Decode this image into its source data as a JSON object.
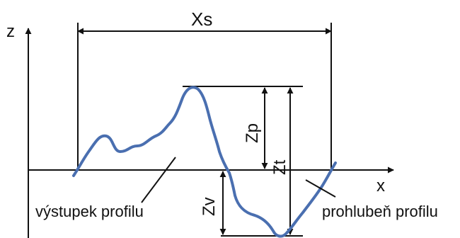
{
  "diagram": {
    "labels": {
      "z_axis": "z",
      "x_axis": "x",
      "xs": "Xs",
      "zp": "Zp",
      "zt": "Zt",
      "zv": "Zv",
      "peak_caption": "výstupek profilu",
      "valley_caption": "prohlubeň profilu"
    },
    "colors": {
      "profile_line": "#4a6fb0",
      "line_ink": "#111111",
      "background": "#ffffff"
    }
  }
}
